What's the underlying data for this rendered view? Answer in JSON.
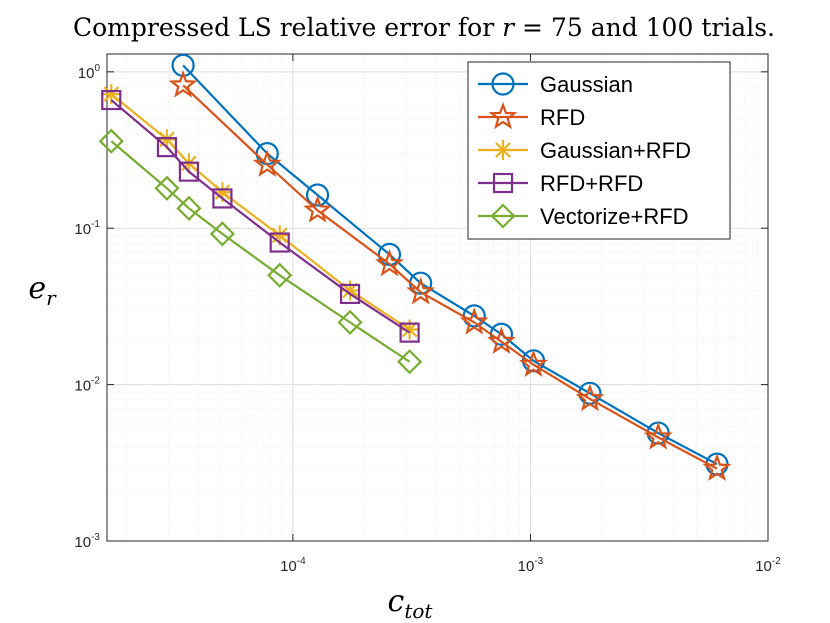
{
  "chart_data": {
    "type": "line",
    "scale": "log-log",
    "title": "Compressed LS relative error for r = 75 and 100 trials.",
    "title_parts": {
      "prefix": "Compressed LS relative error for",
      "r": "r",
      "eq": "=",
      "rest": "75 and 100 trials."
    },
    "xlabel": {
      "base": "c",
      "sub": "tot"
    },
    "ylabel": {
      "base": "e",
      "sub": "r"
    },
    "xlim": [
      1.65e-05,
      0.01
    ],
    "ylim": [
      0.001,
      1.3
    ],
    "x_ticks": [
      {
        "base": "10",
        "exp": "-4",
        "value": 0.0001
      },
      {
        "base": "10",
        "exp": "-3",
        "value": 0.001
      },
      {
        "base": "10",
        "exp": "-2",
        "value": 0.01
      }
    ],
    "y_ticks": [
      {
        "base": "10",
        "exp": "-3",
        "value": 0.001
      },
      {
        "base": "10",
        "exp": "-2",
        "value": 0.01
      },
      {
        "base": "10",
        "exp": "-1",
        "value": 0.1
      },
      {
        "base": "10",
        "exp": "0",
        "value": 1
      }
    ],
    "grid": true,
    "legend_position": "top-right",
    "series": [
      {
        "name": "Gaussian",
        "color": "#0072BD",
        "marker": "circle",
        "x": [
          3.45e-05,
          7.8e-05,
          0.000127,
          0.000255,
          0.000345,
          0.00058,
          0.000755,
          0.00103,
          0.00178,
          0.00345,
          0.0061
        ],
        "y": [
          1.1,
          0.3,
          0.163,
          0.068,
          0.0445,
          0.0275,
          0.021,
          0.0142,
          0.0088,
          0.0049,
          0.0031
        ]
      },
      {
        "name": "RFD",
        "color": "#D95319",
        "marker": "star",
        "x": [
          3.45e-05,
          7.8e-05,
          0.000127,
          0.000255,
          0.000345,
          0.00058,
          0.000755,
          0.00103,
          0.00178,
          0.00345,
          0.0061
        ],
        "y": [
          0.82,
          0.255,
          0.13,
          0.059,
          0.039,
          0.025,
          0.0188,
          0.0134,
          0.0081,
          0.0046,
          0.0029
        ]
      },
      {
        "name": "Gaussian+RFD",
        "color": "#EDB120",
        "marker": "asterisk",
        "x": [
          1.72e-05,
          2.95e-05,
          3.65e-05,
          5.05e-05,
          8.8e-05,
          0.000174,
          0.00031
        ],
        "y": [
          0.72,
          0.37,
          0.26,
          0.17,
          0.09,
          0.04,
          0.0225
        ]
      },
      {
        "name": "RFD+RFD",
        "color": "#7E2F8E",
        "marker": "square",
        "x": [
          1.72e-05,
          2.95e-05,
          3.65e-05,
          5.05e-05,
          8.8e-05,
          0.000174,
          0.00031
        ],
        "y": [
          0.66,
          0.33,
          0.23,
          0.155,
          0.081,
          0.038,
          0.0215
        ]
      },
      {
        "name": "Vectorize+RFD",
        "color": "#77AC30",
        "marker": "diamond",
        "x": [
          1.72e-05,
          2.95e-05,
          3.65e-05,
          5.05e-05,
          8.8e-05,
          0.000174,
          0.00031
        ],
        "y": [
          0.36,
          0.18,
          0.134,
          0.092,
          0.05,
          0.025,
          0.014
        ]
      }
    ]
  }
}
